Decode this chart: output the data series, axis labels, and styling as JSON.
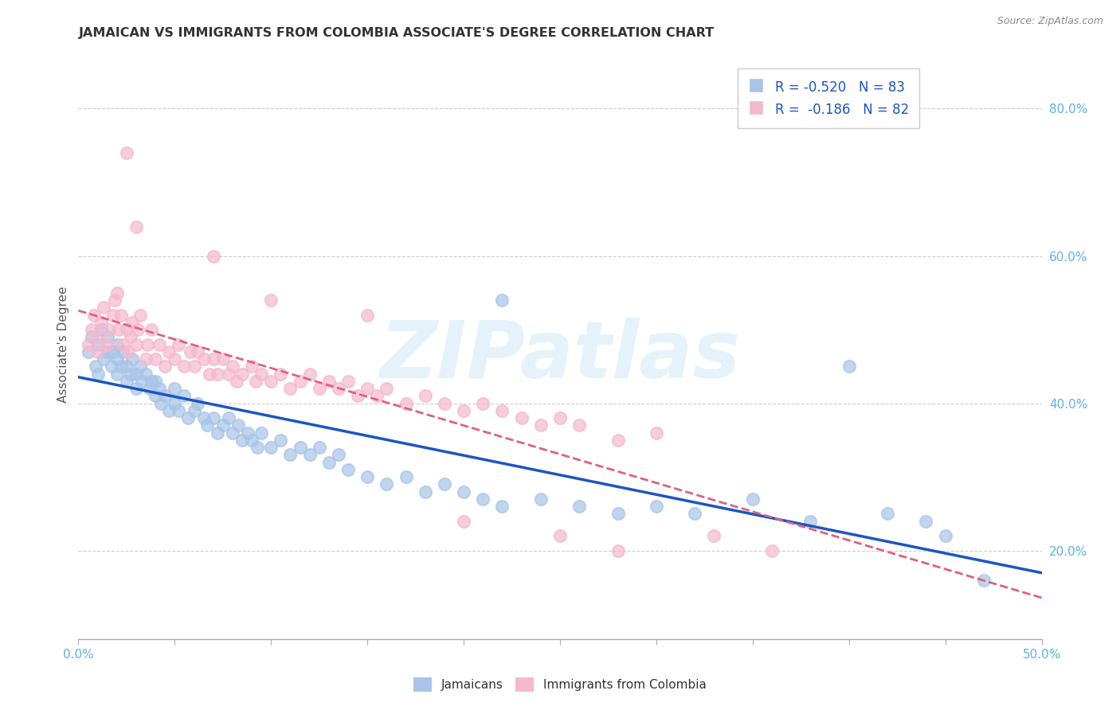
{
  "title": "JAMAICAN VS IMMIGRANTS FROM COLOMBIA ASSOCIATE'S DEGREE CORRELATION CHART",
  "source": "Source: ZipAtlas.com",
  "ylabel": "Associate's Degree",
  "watermark": "ZIPatlas",
  "blue_R": -0.52,
  "blue_N": 83,
  "pink_R": -0.186,
  "pink_N": 82,
  "blue_color": "#a8c4e8",
  "pink_color": "#f5b8cc",
  "blue_line_color": "#1a56c4",
  "pink_line_color": "#e0607e",
  "axis_color": "#5bb0e8",
  "legend_text_color": "#1a56c4",
  "title_color": "#333333",
  "background_color": "#ffffff",
  "grid_color": "#cccccc",
  "xmin": 0.0,
  "xmax": 0.5,
  "ymin": 0.08,
  "ymax": 0.88,
  "blue_scatter_x": [
    0.005,
    0.007,
    0.009,
    0.01,
    0.01,
    0.012,
    0.013,
    0.015,
    0.015,
    0.017,
    0.018,
    0.02,
    0.02,
    0.02,
    0.022,
    0.023,
    0.025,
    0.025,
    0.027,
    0.028,
    0.03,
    0.03,
    0.032,
    0.033,
    0.035,
    0.037,
    0.038,
    0.04,
    0.04,
    0.042,
    0.043,
    0.045,
    0.047,
    0.05,
    0.05,
    0.052,
    0.055,
    0.057,
    0.06,
    0.062,
    0.065,
    0.067,
    0.07,
    0.072,
    0.075,
    0.078,
    0.08,
    0.083,
    0.085,
    0.088,
    0.09,
    0.093,
    0.095,
    0.1,
    0.105,
    0.11,
    0.115,
    0.12,
    0.125,
    0.13,
    0.135,
    0.14,
    0.15,
    0.16,
    0.17,
    0.18,
    0.19,
    0.2,
    0.21,
    0.22,
    0.24,
    0.26,
    0.28,
    0.3,
    0.32,
    0.35,
    0.38,
    0.4,
    0.42,
    0.44,
    0.45,
    0.47,
    0.22
  ],
  "blue_scatter_y": [
    0.47,
    0.49,
    0.45,
    0.48,
    0.44,
    0.5,
    0.46,
    0.47,
    0.49,
    0.45,
    0.47,
    0.46,
    0.48,
    0.44,
    0.45,
    0.47,
    0.45,
    0.43,
    0.44,
    0.46,
    0.44,
    0.42,
    0.45,
    0.43,
    0.44,
    0.42,
    0.43,
    0.41,
    0.43,
    0.42,
    0.4,
    0.41,
    0.39,
    0.4,
    0.42,
    0.39,
    0.41,
    0.38,
    0.39,
    0.4,
    0.38,
    0.37,
    0.38,
    0.36,
    0.37,
    0.38,
    0.36,
    0.37,
    0.35,
    0.36,
    0.35,
    0.34,
    0.36,
    0.34,
    0.35,
    0.33,
    0.34,
    0.33,
    0.34,
    0.32,
    0.33,
    0.31,
    0.3,
    0.29,
    0.3,
    0.28,
    0.29,
    0.28,
    0.27,
    0.26,
    0.27,
    0.26,
    0.25,
    0.26,
    0.25,
    0.27,
    0.24,
    0.45,
    0.25,
    0.24,
    0.22,
    0.16,
    0.54
  ],
  "pink_scatter_x": [
    0.005,
    0.007,
    0.008,
    0.01,
    0.01,
    0.012,
    0.013,
    0.015,
    0.016,
    0.018,
    0.019,
    0.02,
    0.021,
    0.022,
    0.023,
    0.025,
    0.026,
    0.027,
    0.028,
    0.03,
    0.031,
    0.032,
    0.035,
    0.036,
    0.038,
    0.04,
    0.042,
    0.045,
    0.047,
    0.05,
    0.052,
    0.055,
    0.058,
    0.06,
    0.062,
    0.065,
    0.068,
    0.07,
    0.072,
    0.075,
    0.078,
    0.08,
    0.082,
    0.085,
    0.09,
    0.092,
    0.095,
    0.1,
    0.105,
    0.11,
    0.115,
    0.12,
    0.125,
    0.13,
    0.135,
    0.14,
    0.145,
    0.15,
    0.155,
    0.16,
    0.17,
    0.18,
    0.19,
    0.2,
    0.21,
    0.22,
    0.23,
    0.24,
    0.25,
    0.26,
    0.28,
    0.3,
    0.33,
    0.36,
    0.025,
    0.03,
    0.07,
    0.1,
    0.15,
    0.2,
    0.25,
    0.28
  ],
  "pink_scatter_y": [
    0.48,
    0.5,
    0.52,
    0.47,
    0.49,
    0.51,
    0.53,
    0.48,
    0.5,
    0.52,
    0.54,
    0.55,
    0.5,
    0.52,
    0.48,
    0.5,
    0.47,
    0.49,
    0.51,
    0.48,
    0.5,
    0.52,
    0.46,
    0.48,
    0.5,
    0.46,
    0.48,
    0.45,
    0.47,
    0.46,
    0.48,
    0.45,
    0.47,
    0.45,
    0.47,
    0.46,
    0.44,
    0.46,
    0.44,
    0.46,
    0.44,
    0.45,
    0.43,
    0.44,
    0.45,
    0.43,
    0.44,
    0.43,
    0.44,
    0.42,
    0.43,
    0.44,
    0.42,
    0.43,
    0.42,
    0.43,
    0.41,
    0.42,
    0.41,
    0.42,
    0.4,
    0.41,
    0.4,
    0.39,
    0.4,
    0.39,
    0.38,
    0.37,
    0.38,
    0.37,
    0.35,
    0.36,
    0.22,
    0.2,
    0.74,
    0.64,
    0.6,
    0.54,
    0.52,
    0.24,
    0.22,
    0.2
  ]
}
